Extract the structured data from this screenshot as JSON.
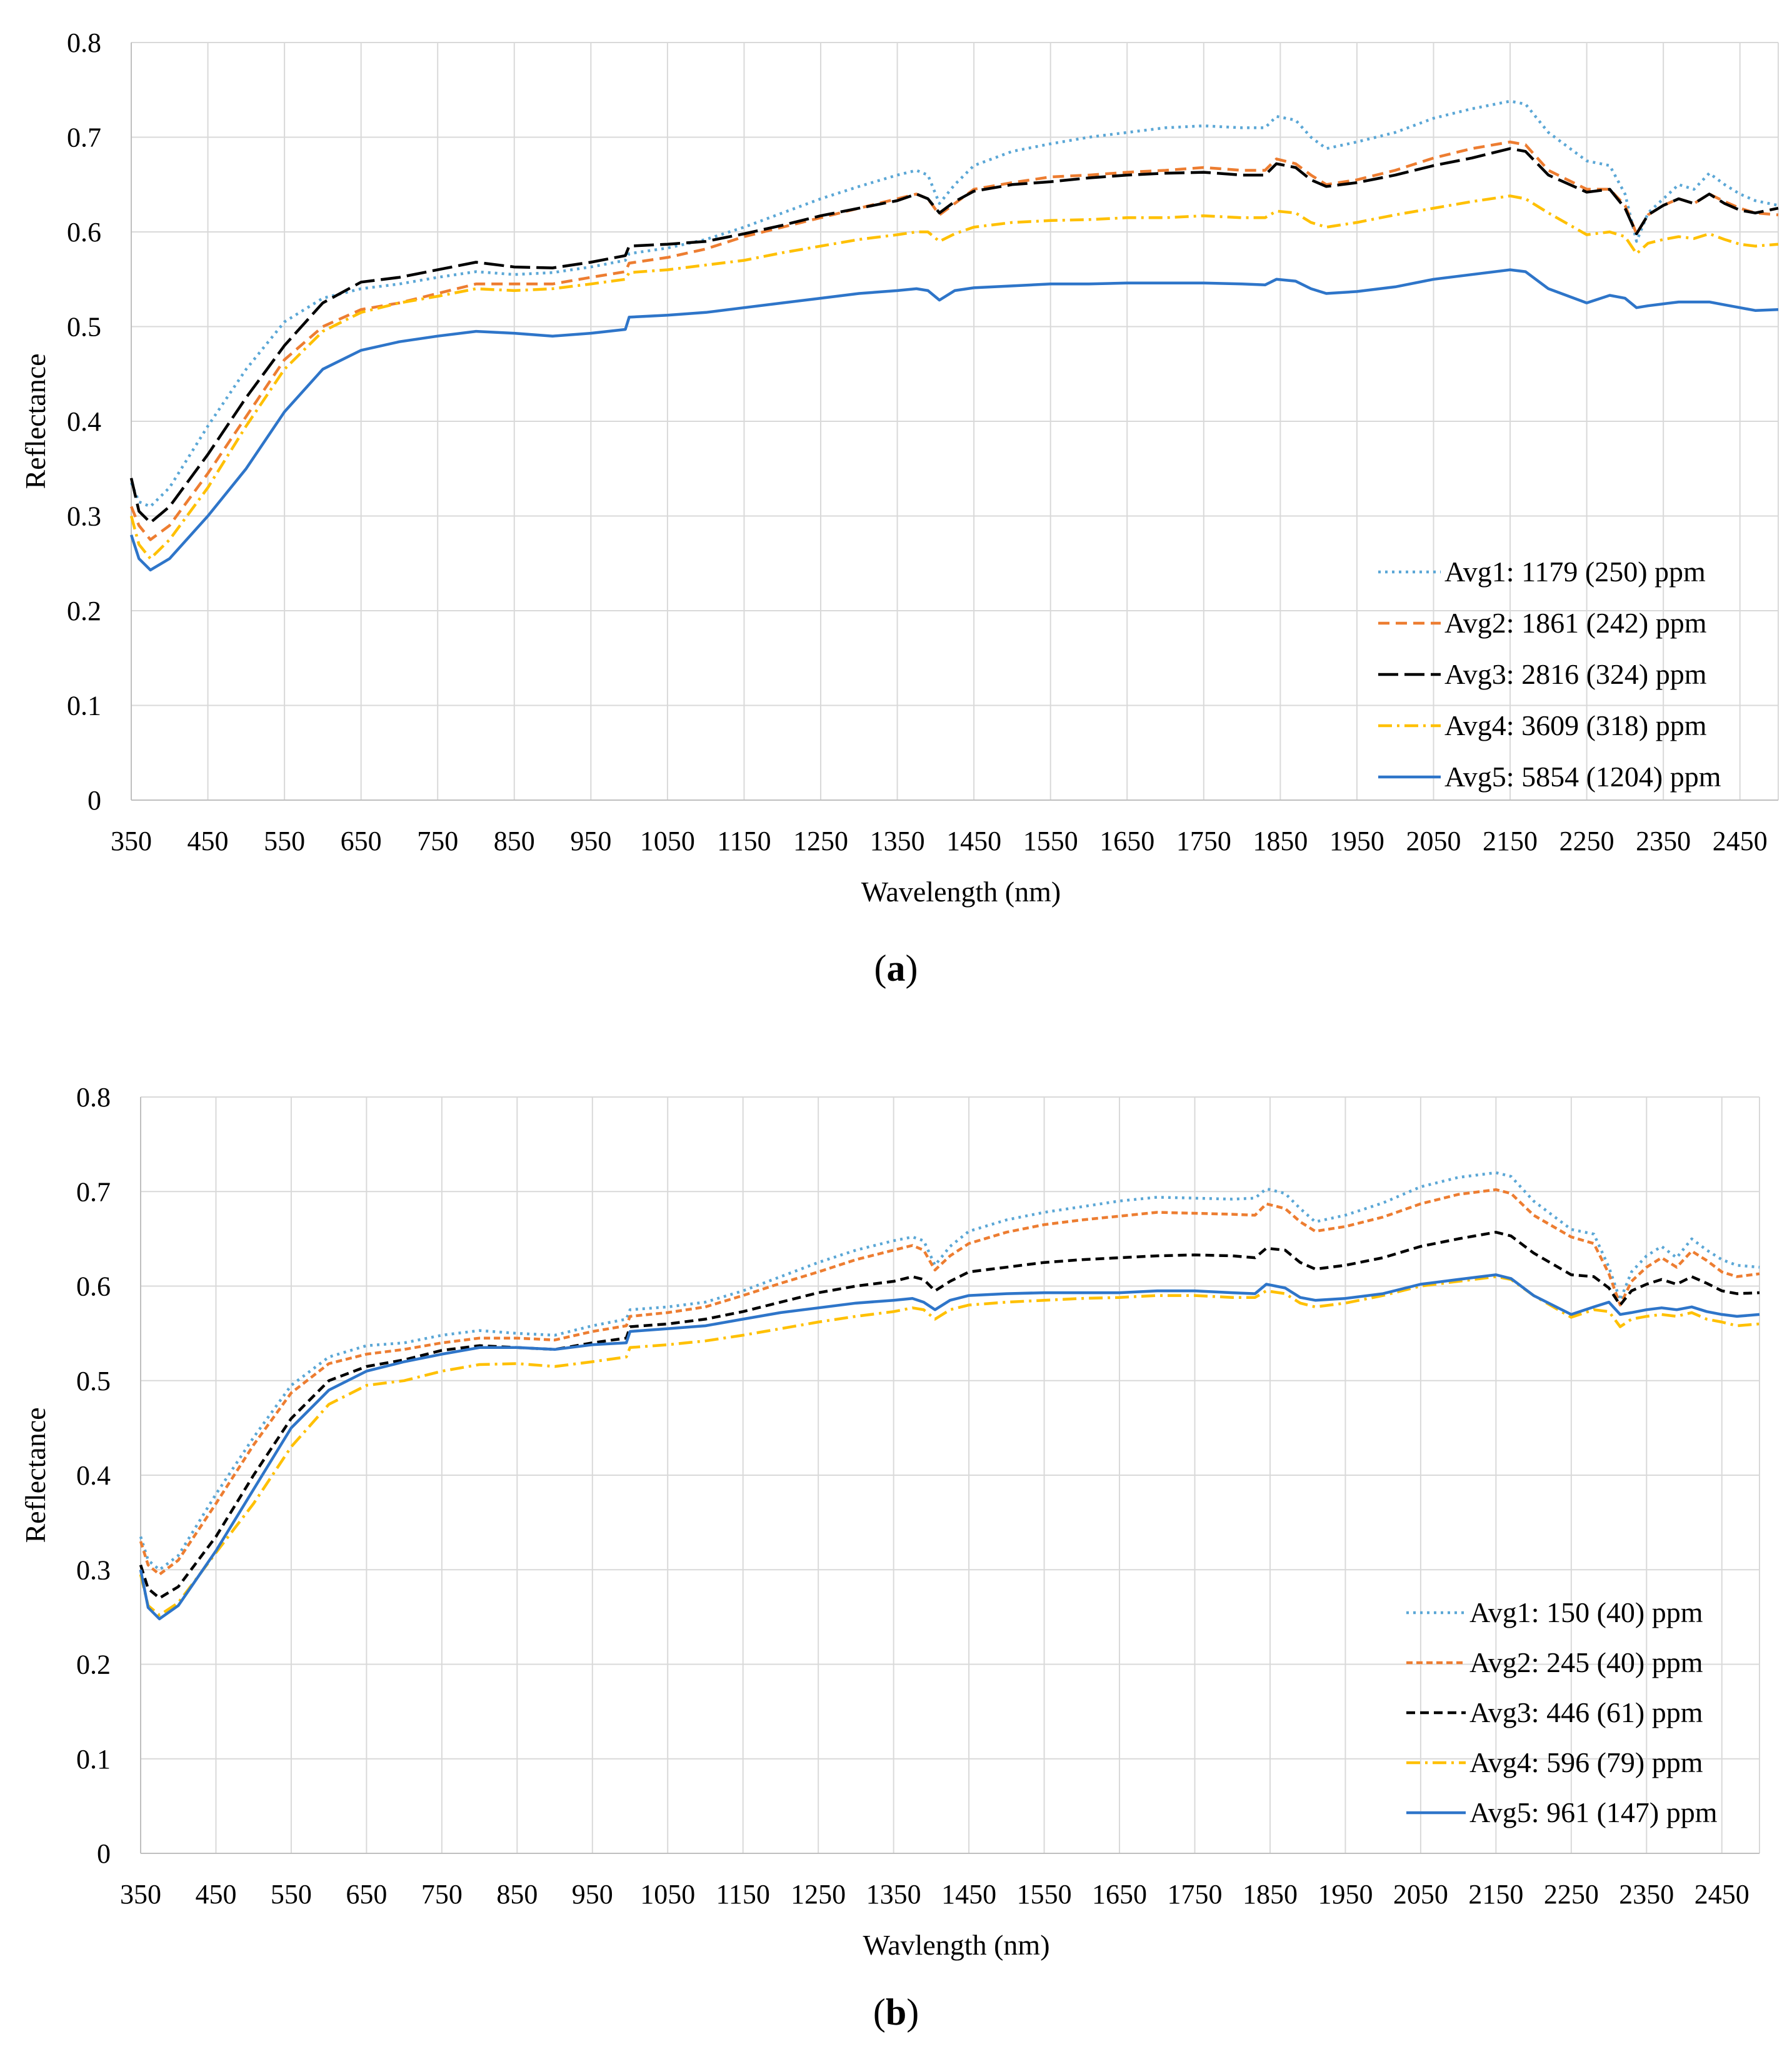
{
  "chart_data": [
    {
      "type": "line",
      "panel_label": "a",
      "title": "",
      "xlabel": "Wavelength (nm)",
      "ylabel": "Reflectance",
      "xlim": [
        350,
        2500
      ],
      "ylim": [
        0,
        0.8
      ],
      "x_ticks": [
        350,
        450,
        550,
        650,
        750,
        850,
        950,
        1050,
        1150,
        1250,
        1350,
        1450,
        1550,
        1650,
        1750,
        1850,
        1950,
        2050,
        2150,
        2250,
        2350,
        2450
      ],
      "y_ticks": [
        "0",
        "0.1",
        "0.2",
        "0.3",
        "0.4",
        "0.5",
        "0.6",
        "0.7",
        "0.8"
      ],
      "grid": true,
      "legend_position": "bottom-right",
      "x": [
        350,
        360,
        375,
        400,
        450,
        500,
        550,
        600,
        650,
        700,
        750,
        800,
        850,
        900,
        950,
        995,
        1000,
        1050,
        1100,
        1150,
        1200,
        1250,
        1300,
        1350,
        1375,
        1390,
        1405,
        1425,
        1450,
        1500,
        1550,
        1600,
        1650,
        1700,
        1750,
        1800,
        1830,
        1845,
        1870,
        1890,
        1910,
        1950,
        2000,
        2050,
        2100,
        2150,
        2170,
        2200,
        2250,
        2280,
        2300,
        2315,
        2330,
        2350,
        2370,
        2390,
        2410,
        2430,
        2450,
        2470,
        2500
      ],
      "series": [
        {
          "name": "Avg1: 1179 (250) ppm",
          "color": "#5BA7D6",
          "dash": "4 7",
          "values": [
            0.335,
            0.315,
            0.31,
            0.33,
            0.395,
            0.455,
            0.505,
            0.53,
            0.54,
            0.545,
            0.552,
            0.558,
            0.555,
            0.557,
            0.563,
            0.57,
            0.577,
            0.583,
            0.592,
            0.605,
            0.62,
            0.635,
            0.648,
            0.66,
            0.665,
            0.66,
            0.63,
            0.65,
            0.67,
            0.685,
            0.693,
            0.7,
            0.705,
            0.71,
            0.712,
            0.71,
            0.71,
            0.722,
            0.718,
            0.7,
            0.688,
            0.695,
            0.705,
            0.72,
            0.73,
            0.738,
            0.735,
            0.705,
            0.675,
            0.67,
            0.64,
            0.59,
            0.62,
            0.635,
            0.65,
            0.645,
            0.662,
            0.65,
            0.64,
            0.633,
            0.628
          ]
        },
        {
          "name": "Avg2: 1861 (242) ppm",
          "color": "#ED7D31",
          "dash": "18 10",
          "values": [
            0.31,
            0.29,
            0.275,
            0.29,
            0.345,
            0.405,
            0.465,
            0.5,
            0.518,
            0.525,
            0.535,
            0.545,
            0.545,
            0.545,
            0.552,
            0.558,
            0.567,
            0.573,
            0.582,
            0.595,
            0.605,
            0.615,
            0.625,
            0.635,
            0.64,
            0.635,
            0.618,
            0.63,
            0.645,
            0.652,
            0.658,
            0.66,
            0.663,
            0.665,
            0.668,
            0.665,
            0.665,
            0.677,
            0.672,
            0.66,
            0.65,
            0.655,
            0.665,
            0.678,
            0.688,
            0.695,
            0.692,
            0.665,
            0.645,
            0.645,
            0.628,
            0.598,
            0.618,
            0.628,
            0.635,
            0.63,
            0.64,
            0.632,
            0.625,
            0.62,
            0.618
          ]
        },
        {
          "name": "Avg3: 2816 (324) ppm",
          "color": "#000000",
          "dash": "32 10",
          "values": [
            0.34,
            0.305,
            0.293,
            0.31,
            0.365,
            0.425,
            0.48,
            0.525,
            0.547,
            0.552,
            0.56,
            0.568,
            0.563,
            0.562,
            0.568,
            0.575,
            0.585,
            0.587,
            0.59,
            0.598,
            0.607,
            0.617,
            0.625,
            0.633,
            0.64,
            0.635,
            0.62,
            0.632,
            0.643,
            0.65,
            0.653,
            0.657,
            0.66,
            0.662,
            0.663,
            0.66,
            0.66,
            0.672,
            0.668,
            0.655,
            0.648,
            0.652,
            0.66,
            0.67,
            0.678,
            0.688,
            0.685,
            0.66,
            0.642,
            0.645,
            0.625,
            0.598,
            0.618,
            0.628,
            0.635,
            0.63,
            0.64,
            0.63,
            0.623,
            0.62,
            0.625
          ]
        },
        {
          "name": "Avg4: 3609 (318) ppm",
          "color": "#FFC000",
          "dash": "22 8 4 8",
          "values": [
            0.3,
            0.27,
            0.255,
            0.275,
            0.33,
            0.395,
            0.455,
            0.495,
            0.515,
            0.525,
            0.532,
            0.54,
            0.538,
            0.54,
            0.545,
            0.55,
            0.557,
            0.56,
            0.565,
            0.57,
            0.578,
            0.585,
            0.592,
            0.597,
            0.6,
            0.6,
            0.59,
            0.598,
            0.605,
            0.61,
            0.612,
            0.613,
            0.615,
            0.615,
            0.617,
            0.615,
            0.615,
            0.622,
            0.62,
            0.61,
            0.605,
            0.61,
            0.618,
            0.625,
            0.632,
            0.638,
            0.635,
            0.62,
            0.597,
            0.6,
            0.595,
            0.577,
            0.588,
            0.592,
            0.595,
            0.593,
            0.598,
            0.592,
            0.587,
            0.585,
            0.587
          ]
        },
        {
          "name": "Avg5: 5854 (1204) ppm",
          "color": "#2E75C9",
          "dash": "",
          "values": [
            0.28,
            0.255,
            0.243,
            0.255,
            0.3,
            0.35,
            0.41,
            0.455,
            0.475,
            0.484,
            0.49,
            0.495,
            0.493,
            0.49,
            0.493,
            0.497,
            0.51,
            0.512,
            0.515,
            0.52,
            0.525,
            0.53,
            0.535,
            0.538,
            0.54,
            0.538,
            0.528,
            0.538,
            0.541,
            0.543,
            0.545,
            0.545,
            0.546,
            0.546,
            0.546,
            0.545,
            0.544,
            0.55,
            0.548,
            0.54,
            0.535,
            0.537,
            0.542,
            0.55,
            0.555,
            0.56,
            0.558,
            0.54,
            0.525,
            0.533,
            0.53,
            0.52,
            0.522,
            0.524,
            0.526,
            0.526,
            0.526,
            0.523,
            0.52,
            0.517,
            0.518
          ]
        }
      ]
    },
    {
      "type": "line",
      "panel_label": "b",
      "title": "",
      "xlabel": "Wavlength (nm)",
      "ylabel": "Reflectance",
      "xlim": [
        350,
        2500
      ],
      "ylim": [
        0,
        0.8
      ],
      "x_ticks": [
        350,
        450,
        550,
        650,
        750,
        850,
        950,
        1050,
        1150,
        1250,
        1350,
        1450,
        1550,
        1650,
        1750,
        1850,
        1950,
        2050,
        2150,
        2250,
        2350,
        2450
      ],
      "y_ticks": [
        "0",
        "0.1",
        "0.2",
        "0.3",
        "0.4",
        "0.5",
        "0.6",
        "0.7",
        "0.8"
      ],
      "grid": true,
      "legend_position": "bottom-right",
      "x": [
        350,
        360,
        375,
        400,
        450,
        500,
        550,
        600,
        650,
        700,
        750,
        800,
        850,
        900,
        950,
        995,
        1000,
        1050,
        1100,
        1150,
        1200,
        1250,
        1300,
        1350,
        1375,
        1390,
        1405,
        1425,
        1450,
        1500,
        1550,
        1600,
        1650,
        1700,
        1750,
        1800,
        1830,
        1845,
        1870,
        1890,
        1910,
        1950,
        2000,
        2050,
        2100,
        2150,
        2170,
        2200,
        2250,
        2280,
        2300,
        2315,
        2330,
        2350,
        2370,
        2390,
        2410,
        2430,
        2450,
        2470,
        2500
      ],
      "series": [
        {
          "name": "Avg1: 150 (40) ppm",
          "color": "#5BA7D6",
          "dash": "4 7",
          "values": [
            0.335,
            0.31,
            0.3,
            0.315,
            0.38,
            0.44,
            0.495,
            0.525,
            0.537,
            0.54,
            0.548,
            0.553,
            0.55,
            0.548,
            0.558,
            0.565,
            0.575,
            0.578,
            0.583,
            0.595,
            0.61,
            0.625,
            0.638,
            0.648,
            0.652,
            0.648,
            0.622,
            0.642,
            0.658,
            0.67,
            0.678,
            0.684,
            0.69,
            0.694,
            0.693,
            0.692,
            0.693,
            0.703,
            0.698,
            0.682,
            0.668,
            0.675,
            0.688,
            0.705,
            0.715,
            0.72,
            0.716,
            0.69,
            0.66,
            0.655,
            0.62,
            0.585,
            0.615,
            0.632,
            0.642,
            0.63,
            0.65,
            0.638,
            0.628,
            0.622,
            0.62
          ]
        },
        {
          "name": "Avg2: 245 (40) ppm",
          "color": "#ED7D31",
          "dash": "10 6",
          "values": [
            0.33,
            0.305,
            0.295,
            0.31,
            0.37,
            0.432,
            0.487,
            0.518,
            0.528,
            0.533,
            0.54,
            0.545,
            0.545,
            0.543,
            0.552,
            0.558,
            0.568,
            0.572,
            0.578,
            0.59,
            0.603,
            0.615,
            0.628,
            0.638,
            0.643,
            0.638,
            0.617,
            0.632,
            0.645,
            0.657,
            0.665,
            0.67,
            0.674,
            0.678,
            0.677,
            0.676,
            0.675,
            0.687,
            0.682,
            0.668,
            0.658,
            0.663,
            0.673,
            0.687,
            0.697,
            0.702,
            0.698,
            0.675,
            0.652,
            0.645,
            0.613,
            0.58,
            0.605,
            0.62,
            0.63,
            0.62,
            0.637,
            0.627,
            0.615,
            0.61,
            0.613
          ]
        },
        {
          "name": "Avg3: 446 (61) ppm",
          "color": "#000000",
          "dash": "14 8",
          "values": [
            0.305,
            0.28,
            0.27,
            0.282,
            0.335,
            0.4,
            0.46,
            0.5,
            0.515,
            0.522,
            0.532,
            0.537,
            0.535,
            0.533,
            0.54,
            0.545,
            0.557,
            0.56,
            0.565,
            0.573,
            0.583,
            0.593,
            0.6,
            0.605,
            0.61,
            0.607,
            0.595,
            0.605,
            0.615,
            0.62,
            0.625,
            0.628,
            0.63,
            0.632,
            0.633,
            0.632,
            0.63,
            0.64,
            0.638,
            0.625,
            0.618,
            0.622,
            0.63,
            0.642,
            0.65,
            0.657,
            0.653,
            0.635,
            0.612,
            0.61,
            0.598,
            0.58,
            0.595,
            0.602,
            0.607,
            0.602,
            0.61,
            0.603,
            0.595,
            0.592,
            0.593
          ]
        },
        {
          "name": "Avg4: 596 (79) ppm",
          "color": "#FFC000",
          "dash": "22 8 4 8",
          "values": [
            0.295,
            0.262,
            0.252,
            0.265,
            0.318,
            0.37,
            0.43,
            0.475,
            0.495,
            0.5,
            0.51,
            0.517,
            0.518,
            0.515,
            0.52,
            0.525,
            0.535,
            0.538,
            0.542,
            0.548,
            0.555,
            0.562,
            0.568,
            0.573,
            0.577,
            0.575,
            0.565,
            0.575,
            0.58,
            0.583,
            0.585,
            0.587,
            0.588,
            0.59,
            0.59,
            0.588,
            0.588,
            0.595,
            0.592,
            0.582,
            0.578,
            0.582,
            0.59,
            0.6,
            0.605,
            0.61,
            0.607,
            0.59,
            0.567,
            0.575,
            0.573,
            0.557,
            0.565,
            0.568,
            0.57,
            0.568,
            0.572,
            0.565,
            0.562,
            0.558,
            0.56
          ]
        },
        {
          "name": "Avg5: 961 (147) ppm",
          "color": "#2E75C9",
          "dash": "",
          "values": [
            0.3,
            0.26,
            0.248,
            0.262,
            0.32,
            0.385,
            0.45,
            0.49,
            0.51,
            0.52,
            0.528,
            0.535,
            0.535,
            0.533,
            0.538,
            0.54,
            0.552,
            0.555,
            0.558,
            0.565,
            0.572,
            0.577,
            0.582,
            0.585,
            0.587,
            0.583,
            0.575,
            0.585,
            0.59,
            0.592,
            0.593,
            0.593,
            0.593,
            0.595,
            0.595,
            0.593,
            0.592,
            0.602,
            0.598,
            0.588,
            0.585,
            0.587,
            0.592,
            0.602,
            0.607,
            0.612,
            0.608,
            0.59,
            0.57,
            0.578,
            0.583,
            0.57,
            0.572,
            0.575,
            0.577,
            0.575,
            0.578,
            0.573,
            0.57,
            0.568,
            0.57
          ]
        }
      ]
    }
  ]
}
